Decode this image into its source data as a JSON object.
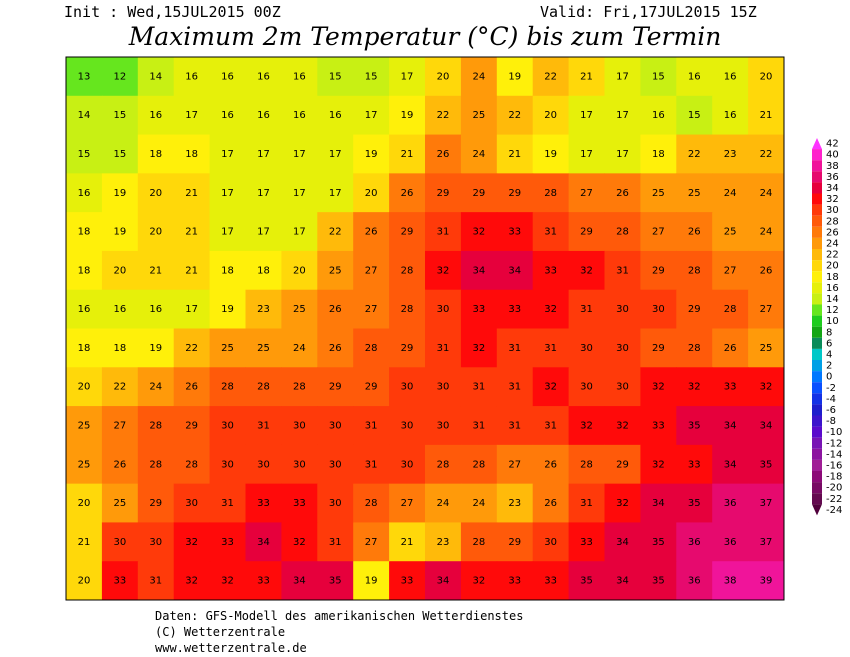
{
  "header": {
    "init": "Init : Wed,15JUL2015 00Z",
    "valid": "Valid: Fri,17JUL2015 15Z",
    "title": "Maximum 2m Temperatur (°C) bis zum Termin"
  },
  "footer": {
    "lines": [
      "Daten: GFS-Modell des amerikanischen Wetterdienstes",
      "(C) Wetterzentrale",
      "www.wetterzentrale.de"
    ]
  },
  "scale": {
    "levels": [
      42,
      40,
      38,
      36,
      34,
      32,
      30,
      28,
      26,
      24,
      22,
      20,
      18,
      16,
      14,
      12,
      10,
      8,
      6,
      4,
      2,
      0,
      -2,
      -4,
      -6,
      -8,
      -10,
      -12,
      -14,
      -16,
      -18,
      -20,
      -22,
      -24
    ],
    "colors": [
      "#ff33ff",
      "#ff22cc",
      "#f0149a",
      "#e60a6e",
      "#e6003c",
      "#ff0a0a",
      "#ff3a0a",
      "#ff5a0a",
      "#ff7a0a",
      "#ff9a0a",
      "#ffba0a",
      "#ffd80a",
      "#fff00a",
      "#e6f00a",
      "#c8f014",
      "#66e61e",
      "#1ecc1e",
      "#14a614",
      "#0a8c5a",
      "#00c8c8",
      "#00a0e6",
      "#0078ff",
      "#0a50ff",
      "#1432e6",
      "#1e1ecc",
      "#3c14cc",
      "#5a0acc",
      "#7814b4",
      "#8c14a0",
      "#a01e96",
      "#8c0a78",
      "#780a64",
      "#640a50",
      "#50003c"
    ]
  },
  "map": {
    "rows": [
      [
        13,
        12,
        14,
        16,
        16,
        16,
        16,
        15,
        15,
        17,
        20,
        24,
        19,
        22,
        21,
        17,
        15,
        16,
        16,
        20
      ],
      [
        14,
        15,
        16,
        17,
        16,
        16,
        16,
        16,
        17,
        19,
        22,
        25,
        22,
        20,
        17,
        17,
        16,
        15,
        16,
        21
      ],
      [
        15,
        15,
        18,
        18,
        17,
        17,
        17,
        17,
        19,
        21,
        26,
        24,
        21,
        19,
        17,
        17,
        18,
        22,
        23,
        22
      ],
      [
        16,
        19,
        20,
        21,
        17,
        17,
        17,
        17,
        20,
        26,
        29,
        29,
        29,
        28,
        27,
        26,
        25,
        25,
        24,
        24
      ],
      [
        18,
        19,
        20,
        21,
        17,
        17,
        17,
        22,
        26,
        29,
        31,
        32,
        33,
        31,
        29,
        28,
        27,
        26,
        25,
        24
      ],
      [
        18,
        20,
        21,
        21,
        18,
        18,
        20,
        25,
        27,
        28,
        32,
        34,
        34,
        33,
        32,
        31,
        29,
        28,
        27,
        26
      ],
      [
        16,
        16,
        16,
        17,
        19,
        23,
        25,
        26,
        27,
        28,
        30,
        33,
        33,
        32,
        31,
        30,
        30,
        29,
        28,
        27
      ],
      [
        18,
        18,
        19,
        22,
        25,
        25,
        24,
        26,
        28,
        29,
        31,
        32,
        31,
        31,
        30,
        30,
        29,
        28,
        26,
        25
      ],
      [
        20,
        22,
        24,
        26,
        28,
        28,
        28,
        29,
        29,
        30,
        30,
        31,
        31,
        32,
        30,
        30,
        32,
        32,
        33,
        32
      ],
      [
        25,
        27,
        28,
        29,
        30,
        31,
        30,
        30,
        31,
        30,
        30,
        31,
        31,
        31,
        32,
        32,
        33,
        35,
        34,
        34
      ],
      [
        25,
        26,
        28,
        28,
        30,
        30,
        30,
        30,
        31,
        30,
        28,
        28,
        27,
        26,
        28,
        29,
        32,
        33,
        34,
        35
      ],
      [
        20,
        25,
        29,
        30,
        31,
        33,
        33,
        30,
        28,
        27,
        24,
        24,
        23,
        26,
        31,
        32,
        34,
        35,
        36,
        37
      ],
      [
        21,
        30,
        30,
        32,
        33,
        34,
        32,
        31,
        27,
        21,
        23,
        28,
        29,
        30,
        33,
        34,
        35,
        36,
        36,
        37
      ],
      [
        20,
        33,
        31,
        32,
        32,
        33,
        34,
        35,
        19,
        33,
        34,
        32,
        33,
        33,
        35,
        34,
        35,
        36,
        38,
        39
      ]
    ]
  }
}
